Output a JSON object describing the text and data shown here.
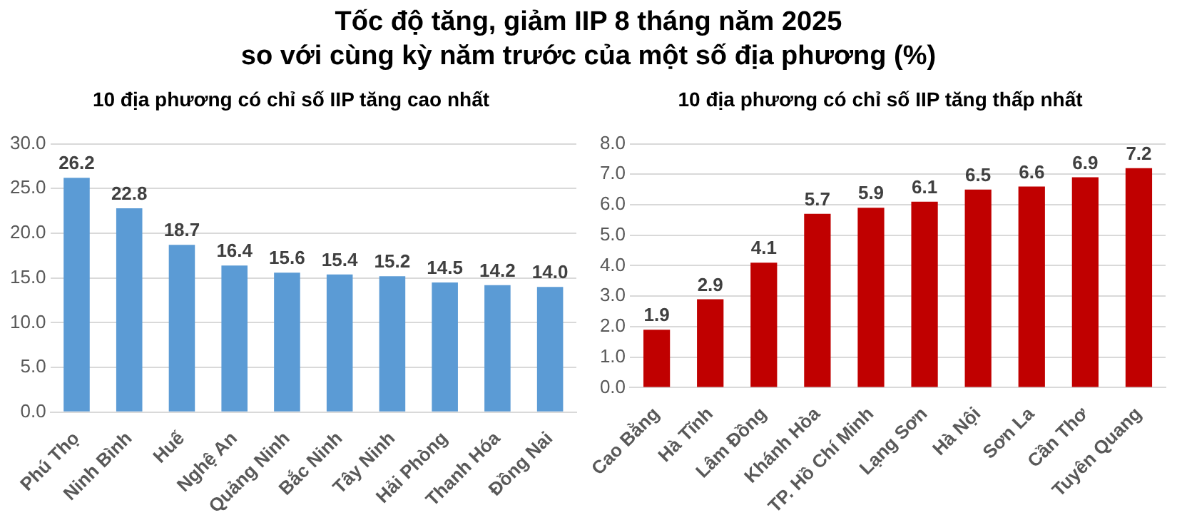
{
  "chart_data": [
    {
      "type": "bar",
      "title": "Tốc độ tăng, giảm IIP 8 tháng năm 2025\nso với cùng kỳ năm trước của một số địa phương (%)",
      "subtitle": "10 địa phương có chỉ số IIP tăng cao nhất",
      "categories": [
        "Phú Thọ",
        "Ninh Bình",
        "Huế",
        "Nghệ An",
        "Quảng Ninh",
        "Bắc Ninh",
        "Tây Ninh",
        "Hải Phòng",
        "Thanh Hóa",
        "Đồng Nai"
      ],
      "series": [
        {
          "color": "#5b9bd5",
          "values": [
            26.2,
            22.8,
            18.7,
            16.4,
            15.6,
            15.4,
            15.2,
            14.5,
            14.2,
            14.0
          ],
          "value_labels": [
            "26.2",
            "22.8",
            "18.7",
            "16.4",
            "15.6",
            "15.4",
            "15.2",
            "14.5",
            "14.2",
            "14.0"
          ]
        }
      ],
      "ylim": [
        0,
        30
      ],
      "yticks": [
        {
          "value": 0,
          "label": "0.0"
        },
        {
          "value": 5,
          "label": "5.0"
        },
        {
          "value": 10,
          "label": "10.0"
        },
        {
          "value": 15,
          "label": "15.0"
        },
        {
          "value": 20,
          "label": "20.0"
        },
        {
          "value": 25,
          "label": "25.0"
        },
        {
          "value": 30,
          "label": "30.0"
        }
      ],
      "grid": "y",
      "legend": false
    },
    {
      "type": "bar",
      "title": "10 địa phương có chỉ số IIP tăng thấp nhất",
      "categories": [
        "Cao Bằng",
        "Hà Tĩnh",
        "Lâm Đồng",
        "Khánh Hòa",
        "TP. Hồ Chí Minh",
        "Lạng Sơn",
        "Hà Nội",
        "Sơn La",
        "Cần Thơ",
        "Tuyên Quang"
      ],
      "series": [
        {
          "color": "#c00000",
          "values": [
            1.9,
            2.9,
            4.1,
            5.7,
            5.9,
            6.1,
            6.5,
            6.6,
            6.9,
            7.2
          ],
          "value_labels": [
            "1.9",
            "2.9",
            "4.1",
            "5.7",
            "5.9",
            "6.1",
            "6.5",
            "6.6",
            "6.9",
            "7.2"
          ]
        }
      ],
      "ylim": [
        0,
        8
      ],
      "yticks": [
        {
          "value": 0,
          "label": "0.0"
        },
        {
          "value": 1,
          "label": "1.0"
        },
        {
          "value": 2,
          "label": "2.0"
        },
        {
          "value": 3,
          "label": "3.0"
        },
        {
          "value": 4,
          "label": "4.0"
        },
        {
          "value": 5,
          "label": "5.0"
        },
        {
          "value": 6,
          "label": "6.0"
        },
        {
          "value": 7,
          "label": "7.0"
        },
        {
          "value": 8,
          "label": "8.0"
        }
      ],
      "grid": "y",
      "legend": false
    }
  ]
}
